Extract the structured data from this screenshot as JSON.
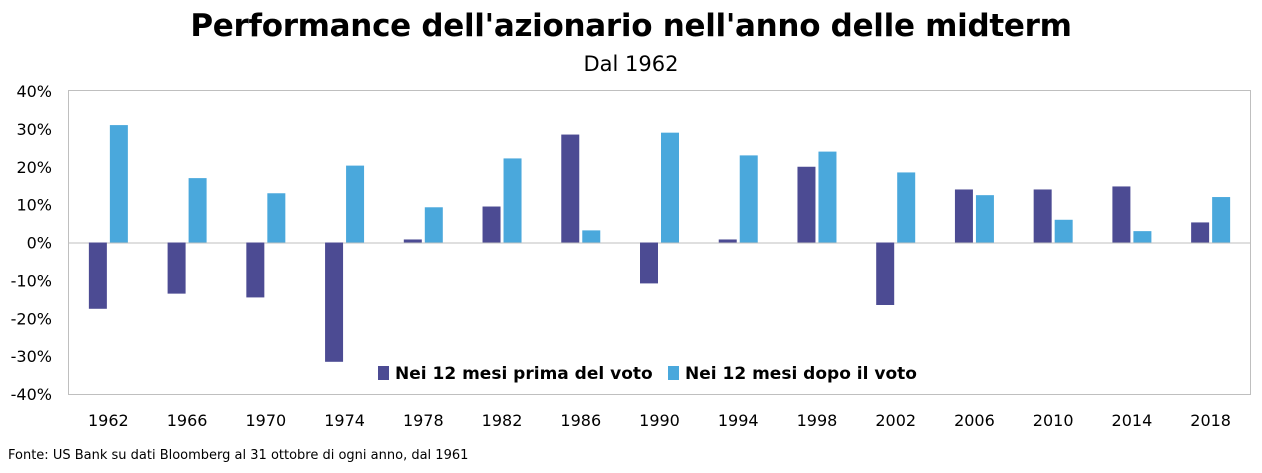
{
  "title": "Performance dell'azionario nell'anno delle midterm",
  "subtitle": "Dal 1962",
  "source": "Fonte: US Bank su dati Bloomberg al 31 ottobre di ogni anno, dal 1961",
  "colors": {
    "before": "#4c4b93",
    "after": "#4aa8dc"
  },
  "chart_data": {
    "type": "bar",
    "categories": [
      "1962",
      "1966",
      "1970",
      "1974",
      "1978",
      "1982",
      "1986",
      "1990",
      "1994",
      "1998",
      "2002",
      "2006",
      "2010",
      "2014",
      "2018"
    ],
    "series": [
      {
        "name": "Nei 12 mesi prima del voto",
        "values": [
          -17.5,
          -13.5,
          -14.5,
          -31.5,
          0.8,
          9.5,
          28.5,
          -10.8,
          0.8,
          20.0,
          -16.5,
          14.0,
          14.0,
          14.8,
          5.3
        ]
      },
      {
        "name": "Nei 12 mesi dopo il voto",
        "values": [
          31.0,
          17.0,
          13.0,
          20.3,
          9.3,
          22.2,
          3.2,
          29.0,
          23.0,
          24.0,
          18.5,
          12.5,
          6.0,
          3.0,
          12.0
        ]
      }
    ],
    "yticks": [
      "40%",
      "30%",
      "20%",
      "10%",
      "0%",
      "-10%",
      "-20%",
      "-30%",
      "-40%"
    ],
    "ylim": [
      -40,
      40
    ],
    "legend_position": "bottom-center"
  }
}
